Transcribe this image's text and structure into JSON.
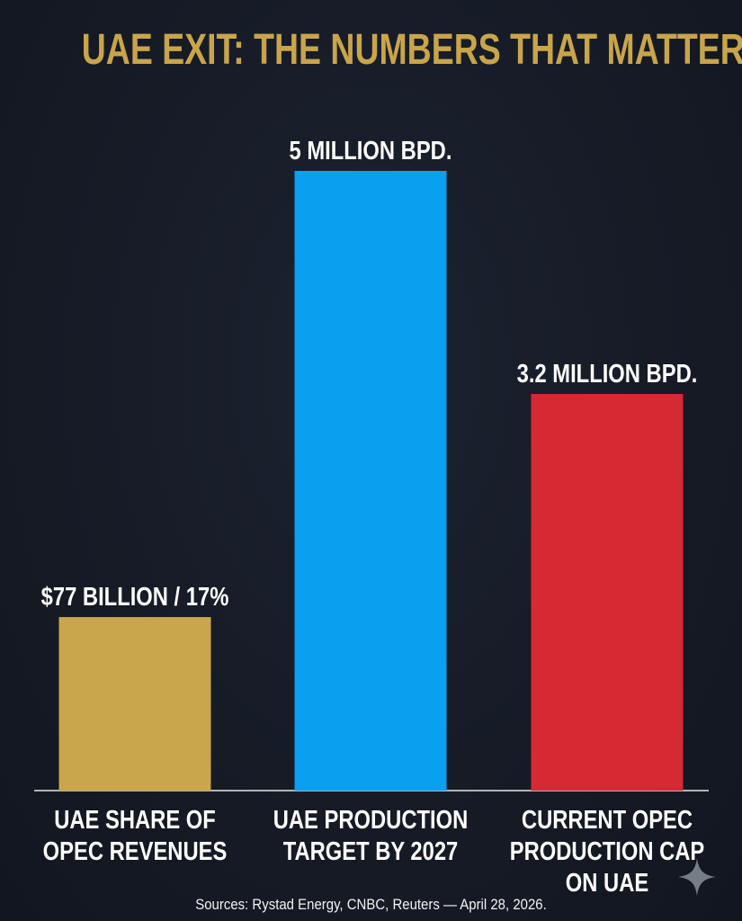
{
  "chart_data": {
    "type": "bar",
    "title": "UAE EXIT: THE NUMBERS THAT MATTER",
    "categories": [
      [
        "UAE SHARE OF",
        "OPEC REVENUES"
      ],
      [
        "UAE PRODUCTION",
        "TARGET BY 2027"
      ],
      [
        "CURRENT OPEC",
        "PRODUCTION CAP",
        "ON UAE"
      ]
    ],
    "value_labels": [
      "$77 BILLION / 17%",
      "5 MILLION BPD.",
      "3.2 MILLION BPD."
    ],
    "values": [
      1.4,
      5,
      3.2
    ],
    "colors": [
      "#c9a64c",
      "#0b9ff0",
      "#d52a33"
    ],
    "ylim": [
      0,
      5
    ],
    "grid": false,
    "legend": "none"
  },
  "source": "Sources: Rystad Energy, CNBC, Reuters — April 28, 2026.",
  "colors": {
    "background": "#161b26",
    "title": "#c9a54a",
    "text": "#ffffff"
  },
  "icons": {
    "corner": "sparkle-icon"
  }
}
